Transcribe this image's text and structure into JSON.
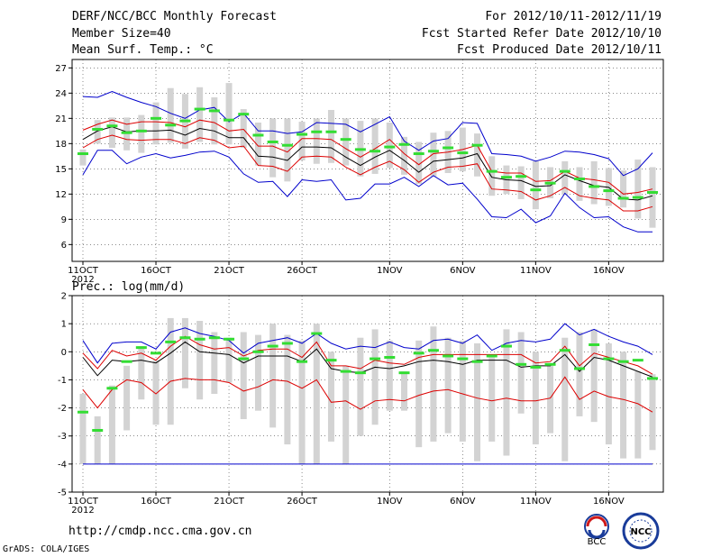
{
  "header": {
    "title": "DERF/NCC/BCC Monthly Forecast",
    "member_size": "Member Size=40",
    "variable": "Mean Surf. Temp.: °C",
    "period": "For 2012/10/11-2012/11/19",
    "started": "Fcst Started Refer Date 2012/10/10",
    "produced": "Fcst Produced Date 2012/10/11"
  },
  "footer": {
    "url": "http://cmdp.ncc.cma.gov.cn",
    "credit": "GrADS: COLA/IGES"
  },
  "logos": {
    "bcc": "BCC",
    "ncc": "NCC"
  },
  "colors": {
    "box": "#d3d3d3",
    "median": "#33dd33",
    "mean": "#000000",
    "sd": "#dd0000",
    "range": "#0000cc",
    "grid": "#444444"
  },
  "chart_data": [
    {
      "type": "line",
      "title": "Mean Surf. Temp.: °C",
      "ylabel": "",
      "ylim": [
        4,
        28
      ],
      "yticks": [
        "6",
        "9",
        "12",
        "15",
        "18",
        "21",
        "24",
        "27"
      ],
      "xticks": [
        {
          "day": 1,
          "label": "11OCT",
          "sub": "2012"
        },
        {
          "day": 6,
          "label": "16OCT"
        },
        {
          "day": 11,
          "label": "21OCT"
        },
        {
          "day": 16,
          "label": "26OCT"
        },
        {
          "day": 22,
          "label": "1NOV"
        },
        {
          "day": 27,
          "label": "6NOV"
        },
        {
          "day": 32,
          "label": "11NOV"
        },
        {
          "day": 37,
          "label": "16NOV"
        }
      ],
      "x_days": [
        1,
        2,
        3,
        4,
        5,
        6,
        7,
        8,
        9,
        10,
        11,
        12,
        13,
        14,
        15,
        16,
        17,
        18,
        19,
        20,
        21,
        22,
        23,
        24,
        25,
        26,
        27,
        28,
        29,
        30,
        31,
        32,
        33,
        34,
        35,
        36,
        37,
        38,
        39,
        40
      ],
      "series": [
        {
          "name": "max",
          "color": "#0000cc",
          "values": [
            23.6,
            23.5,
            24.2,
            23.5,
            22.9,
            22.4,
            21.6,
            21,
            22,
            22.3,
            20.6,
            21.6,
            19.5,
            19.5,
            19.2,
            19.4,
            20.5,
            20.4,
            20.3,
            19.4,
            20.3,
            21.2,
            18.3,
            17.2,
            18.3,
            18.6,
            20.5,
            20.4,
            16.8,
            16.7,
            16.5,
            15.9,
            16.4,
            17.1,
            17,
            16.7,
            16.2,
            14.2,
            15,
            16.9
          ]
        },
        {
          "name": "sd_upper",
          "color": "#dd0000",
          "values": [
            19.6,
            20.3,
            20.8,
            20.3,
            20.6,
            20.6,
            20.5,
            20,
            20.8,
            20.5,
            19.5,
            19.7,
            17.7,
            17.7,
            17,
            18.6,
            18.6,
            18.5,
            17.4,
            16.4,
            17.4,
            18.5,
            16.8,
            15.5,
            16.8,
            17,
            17.3,
            17.8,
            14.7,
            14.5,
            14.5,
            13.5,
            13.6,
            14.7,
            13.9,
            13.7,
            13.4,
            12,
            12.2,
            12.6
          ]
        },
        {
          "name": "mean",
          "color": "#000000",
          "values": [
            18.5,
            19.5,
            20,
            19.4,
            19.5,
            19.5,
            19.6,
            19,
            19.8,
            19.5,
            18.7,
            18.7,
            16.5,
            16.4,
            16,
            17.6,
            17.6,
            17.5,
            16.4,
            15.4,
            16.4,
            17.2,
            16,
            14.6,
            15.9,
            16.1,
            16.3,
            16.8,
            14,
            13.7,
            13.6,
            12.9,
            13,
            14.3,
            13.6,
            13,
            12.8,
            11.4,
            11.3,
            11.8
          ]
        },
        {
          "name": "sd_lower",
          "color": "#dd0000",
          "values": [
            17.5,
            18.5,
            19,
            18.5,
            18.4,
            18.5,
            18.5,
            18,
            18.7,
            18.4,
            17.5,
            17.7,
            15.4,
            15.3,
            14.7,
            16.4,
            16.5,
            16.4,
            15.2,
            14.3,
            15.2,
            15.9,
            14.9,
            13.4,
            14.6,
            15.2,
            15.3,
            15.6,
            12.6,
            12.5,
            12.3,
            11.3,
            11.8,
            12.8,
            11.8,
            11.5,
            11.3,
            10,
            10,
            10.5
          ]
        },
        {
          "name": "min",
          "color": "#0000cc",
          "values": [
            14.3,
            17.2,
            17.2,
            15.6,
            16.4,
            16.8,
            16.3,
            16.6,
            17,
            17.1,
            16.4,
            14.4,
            13.4,
            13.5,
            11.7,
            13.7,
            13.5,
            13.7,
            11.3,
            11.5,
            13.2,
            13.2,
            14,
            12.9,
            14.2,
            13.1,
            13.3,
            11.4,
            9.3,
            9.2,
            10.2,
            8.6,
            9.4,
            12.1,
            10.4,
            9.2,
            9.3,
            8.1,
            7.5,
            7.5
          ]
        },
        {
          "name": "median",
          "color": "#33dd33",
          "values": [
            16.8,
            19.7,
            20.1,
            19.3,
            19.5,
            21,
            20.2,
            20.7,
            22.1,
            21.9,
            20.8,
            21.5,
            19,
            18.2,
            17.8,
            19.1,
            19.4,
            19.4,
            18.5,
            17.3,
            17.1,
            17.6,
            17.9,
            16.8,
            17.1,
            17.5,
            16.9,
            17.8,
            14.7,
            14,
            14.1,
            12.5,
            13.3,
            14.7,
            13.8,
            12.9,
            12.4,
            11.5,
            11.6,
            12.2
          ]
        },
        {
          "name": "box_top",
          "color": "#d3d3d3",
          "values": [
            17.3,
            20.8,
            21.1,
            21.1,
            21.4,
            22.9,
            24.6,
            23.9,
            24.7,
            23.5,
            25.2,
            22.1,
            20.5,
            21,
            21,
            20.6,
            21,
            22,
            21,
            20.7,
            21,
            20.5,
            18.8,
            18.2,
            19.3,
            19.5,
            19.9,
            19.2,
            16.5,
            15.4,
            15.3,
            15.9,
            15.2,
            15.9,
            15.2,
            15.9,
            15.1,
            14.8,
            16.1,
            15.2
          ]
        },
        {
          "name": "box_bottom",
          "color": "#d3d3d3",
          "values": [
            15.4,
            18,
            17.5,
            17.2,
            16.9,
            17.9,
            18.1,
            17.4,
            18.2,
            17.9,
            17.9,
            17.5,
            15.4,
            14,
            13.5,
            16,
            15.6,
            15.7,
            15.4,
            14.1,
            14.4,
            15.1,
            14.3,
            13.2,
            14.1,
            14.5,
            14.7,
            14.1,
            11.8,
            12,
            11.4,
            10.2,
            11.5,
            11.9,
            11.2,
            10.8,
            10.6,
            10.4,
            9.1,
            8
          ]
        }
      ]
    },
    {
      "type": "line",
      "title": "Prec.: log(mm/d)",
      "ylabel": "",
      "ylim": [
        -5,
        2
      ],
      "yticks": [
        "-5",
        "-4",
        "-3",
        "-2",
        "-1",
        "0",
        "1",
        "2"
      ],
      "xticks": [
        {
          "day": 1,
          "label": "11OCT",
          "sub": "2012"
        },
        {
          "day": 6,
          "label": "16OCT"
        },
        {
          "day": 11,
          "label": "21OCT"
        },
        {
          "day": 16,
          "label": "26OCT"
        },
        {
          "day": 22,
          "label": "1NOV"
        },
        {
          "day": 27,
          "label": "6NOV"
        },
        {
          "day": 32,
          "label": "11NOV"
        },
        {
          "day": 37,
          "label": "16NOV"
        }
      ],
      "x_days": [
        1,
        2,
        3,
        4,
        5,
        6,
        7,
        8,
        9,
        10,
        11,
        12,
        13,
        14,
        15,
        16,
        17,
        18,
        19,
        20,
        21,
        22,
        23,
        24,
        25,
        26,
        27,
        28,
        29,
        30,
        31,
        32,
        33,
        34,
        35,
        36,
        37,
        38,
        39,
        40
      ],
      "series": [
        {
          "name": "max",
          "color": "#0000cc",
          "values": [
            0.4,
            -0.4,
            0.3,
            0.35,
            0.35,
            0.1,
            0.7,
            0.85,
            0.65,
            0.55,
            0.4,
            -0.05,
            0.3,
            0.4,
            0.5,
            0.3,
            0.65,
            0.3,
            0.1,
            0.2,
            0.15,
            0.35,
            0.15,
            0.1,
            0.4,
            0.45,
            0.3,
            0.6,
            0.05,
            0.3,
            0.4,
            0.35,
            0.45,
            1.0,
            0.6,
            0.8,
            0.55,
            0.35,
            0.2,
            -0.1
          ]
        },
        {
          "name": "sd_upper",
          "color": "#dd0000",
          "values": [
            -0.05,
            -0.6,
            0.05,
            -0.15,
            -0.05,
            -0.3,
            0.2,
            0.55,
            0.25,
            0.1,
            0.15,
            -0.15,
            0.05,
            0.1,
            0.1,
            -0.2,
            0.35,
            -0.5,
            -0.5,
            -0.6,
            -0.3,
            -0.4,
            -0.45,
            -0.2,
            -0.1,
            -0.1,
            -0.1,
            -0.1,
            -0.1,
            -0.1,
            -0.1,
            -0.4,
            -0.35,
            0.2,
            -0.5,
            -0.05,
            -0.2,
            -0.35,
            -0.5,
            -0.8
          ]
        },
        {
          "name": "mean",
          "color": "#000000",
          "values": [
            -0.2,
            -0.85,
            -0.3,
            -0.35,
            -0.3,
            -0.4,
            -0.05,
            0.35,
            0,
            -0.05,
            -0.1,
            -0.4,
            -0.15,
            -0.15,
            -0.15,
            -0.35,
            0.1,
            -0.6,
            -0.7,
            -0.75,
            -0.55,
            -0.6,
            -0.5,
            -0.35,
            -0.3,
            -0.35,
            -0.45,
            -0.3,
            -0.3,
            -0.3,
            -0.55,
            -0.5,
            -0.5,
            -0.1,
            -0.7,
            -0.2,
            -0.3,
            -0.5,
            -0.7,
            -0.9
          ]
        },
        {
          "name": "sd_lower",
          "color": "#dd0000",
          "values": [
            -1.35,
            -2.0,
            -1.35,
            -1.0,
            -1.1,
            -1.5,
            -1.05,
            -0.95,
            -1.0,
            -1.0,
            -1.1,
            -1.4,
            -1.25,
            -1.0,
            -1.05,
            -1.3,
            -1.0,
            -1.8,
            -1.75,
            -2.05,
            -1.75,
            -1.7,
            -1.75,
            -1.55,
            -1.4,
            -1.35,
            -1.5,
            -1.65,
            -1.75,
            -1.65,
            -1.75,
            -1.75,
            -1.65,
            -0.9,
            -1.7,
            -1.4,
            -1.6,
            -1.7,
            -1.85,
            -2.15
          ]
        },
        {
          "name": "min",
          "color": "#0000cc",
          "values": [
            -4,
            -4,
            -4,
            -4,
            -4,
            -4,
            -4,
            -4,
            -4,
            -4,
            -4,
            -4,
            -4,
            -4,
            -4,
            -4,
            -4,
            -4,
            -4,
            -4,
            -4,
            -4,
            -4,
            -4,
            -4,
            -4,
            -4,
            -4,
            -4,
            -4,
            -4,
            -4,
            -4,
            -4,
            -4,
            -4,
            -4,
            -4,
            -4,
            -4
          ]
        },
        {
          "name": "median",
          "color": "#33dd33",
          "values": [
            -2.15,
            -2.8,
            -1.3,
            -0.35,
            0.15,
            -0.05,
            0.35,
            0.5,
            0.45,
            0.5,
            0.45,
            -0.25,
            0,
            0.2,
            0.3,
            -0.35,
            0.65,
            -0.3,
            -0.7,
            -0.75,
            -0.25,
            -0.2,
            -0.75,
            -0.05,
            0.05,
            -0.15,
            -0.25,
            -0.35,
            -0.15,
            0.2,
            -0.45,
            -0.55,
            -0.45,
            0.05,
            -0.6,
            0.25,
            -0.25,
            -0.35,
            -0.3,
            -0.95
          ]
        },
        {
          "name": "box_top",
          "color": "#d3d3d3",
          "values": [
            -1.5,
            -2.3,
            -1.2,
            -0.5,
            0.2,
            -0.3,
            1.2,
            1.2,
            1.1,
            0.7,
            0.5,
            0.7,
            0.6,
            1,
            0.6,
            0.4,
            1,
            0,
            -0.5,
            0.5,
            0.8,
            0.4,
            -0.7,
            0.4,
            0.9,
            0.5,
            0.4,
            0.3,
            -0.2,
            0.8,
            0.7,
            0,
            -0.5,
            0.5,
            0.7,
            0.8,
            0.3,
            0,
            -0.7,
            -0.8
          ]
        },
        {
          "name": "box_bottom",
          "color": "#d3d3d3",
          "values": [
            -4,
            -4,
            -4,
            -2.8,
            -1.7,
            -2.6,
            -2.6,
            -1.3,
            -1.7,
            -1.5,
            -1.1,
            -2.4,
            -2.1,
            -2.7,
            -3.3,
            -4,
            -4,
            -3.2,
            -4,
            -3,
            -2.6,
            -2.1,
            -2.1,
            -3.4,
            -3.2,
            -2.9,
            -3.2,
            -3.9,
            -3.2,
            -3.7,
            -2.2,
            -3.3,
            -2.9,
            -3.9,
            -2.3,
            -2.5,
            -3.3,
            -3.8,
            -3.8,
            -3.5
          ]
        }
      ]
    }
  ]
}
